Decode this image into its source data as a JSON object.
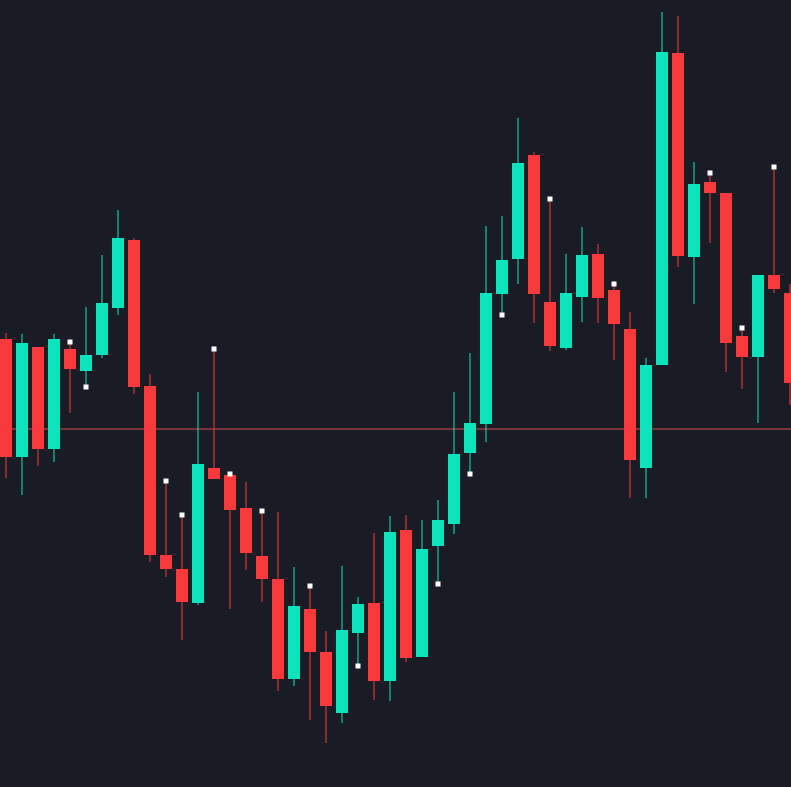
{
  "chart_data": {
    "type": "candlestick",
    "title": "",
    "xlabel": "",
    "ylabel": "",
    "ylim": [
      0,
      787
    ],
    "grid": false,
    "colors": {
      "background": "#1a1c25",
      "up": "#0fe3bc",
      "down": "#f83a3c",
      "marker": "#ffffff",
      "reference_line": "#e0454a"
    },
    "reference_line": 358,
    "candles": [
      {
        "o": 448,
        "h": 454,
        "l": 309,
        "c": 330
      },
      {
        "o": 330,
        "h": 453,
        "l": 292,
        "c": 444
      },
      {
        "o": 440,
        "h": 440,
        "l": 321,
        "c": 338
      },
      {
        "o": 338,
        "h": 453,
        "l": 325,
        "c": 448
      },
      {
        "o": 438,
        "h": 445,
        "l": 374,
        "c": 418,
        "marker": "high"
      },
      {
        "o": 416,
        "h": 480,
        "l": 400,
        "c": 432,
        "marker": "low"
      },
      {
        "o": 432,
        "h": 532,
        "l": 429,
        "c": 484
      },
      {
        "o": 479,
        "h": 577,
        "l": 472,
        "c": 549
      },
      {
        "o": 547,
        "h": 549,
        "l": 393,
        "c": 400
      },
      {
        "o": 401,
        "h": 413,
        "l": 225,
        "c": 232
      },
      {
        "o": 232,
        "h": 306,
        "l": 210,
        "c": 218,
        "marker": "high"
      },
      {
        "o": 218,
        "h": 272,
        "l": 147,
        "c": 185,
        "marker": "high"
      },
      {
        "o": 184,
        "h": 395,
        "l": 182,
        "c": 323
      },
      {
        "o": 319,
        "h": 438,
        "l": 308,
        "c": 308,
        "marker": "high"
      },
      {
        "o": 312,
        "h": 313,
        "l": 178,
        "c": 277,
        "marker": "high"
      },
      {
        "o": 279,
        "h": 305,
        "l": 217,
        "c": 234
      },
      {
        "o": 231,
        "h": 276,
        "l": 185,
        "c": 208,
        "marker": "high"
      },
      {
        "o": 208,
        "h": 275,
        "l": 96,
        "c": 108
      },
      {
        "o": 108,
        "h": 220,
        "l": 101,
        "c": 181
      },
      {
        "o": 178,
        "h": 201,
        "l": 67,
        "c": 135,
        "marker": "high"
      },
      {
        "o": 135,
        "h": 156,
        "l": 44,
        "c": 81
      },
      {
        "o": 74,
        "h": 221,
        "l": 64,
        "c": 157
      },
      {
        "o": 154,
        "h": 190,
        "l": 121,
        "c": 183,
        "marker": "low"
      },
      {
        "o": 184,
        "h": 254,
        "l": 87,
        "c": 106
      },
      {
        "o": 106,
        "h": 271,
        "l": 86,
        "c": 255
      },
      {
        "o": 257,
        "h": 272,
        "l": 125,
        "c": 129
      },
      {
        "o": 130,
        "h": 267,
        "l": 130,
        "c": 238
      },
      {
        "o": 241,
        "h": 287,
        "l": 203,
        "c": 267,
        "marker": "low"
      },
      {
        "o": 263,
        "h": 395,
        "l": 253,
        "c": 333
      },
      {
        "o": 334,
        "h": 434,
        "l": 313,
        "c": 364,
        "marker": "low"
      },
      {
        "o": 363,
        "h": 561,
        "l": 345,
        "c": 494
      },
      {
        "o": 493,
        "h": 571,
        "l": 472,
        "c": 527,
        "marker": "low"
      },
      {
        "o": 528,
        "h": 669,
        "l": 503,
        "c": 624
      },
      {
        "o": 632,
        "h": 635,
        "l": 464,
        "c": 493
      },
      {
        "o": 485,
        "h": 588,
        "l": 436,
        "c": 441,
        "marker": "high"
      },
      {
        "o": 439,
        "h": 533,
        "l": 437,
        "c": 494
      },
      {
        "o": 490,
        "h": 560,
        "l": 465,
        "c": 532
      },
      {
        "o": 533,
        "h": 543,
        "l": 464,
        "c": 489
      },
      {
        "o": 497,
        "h": 503,
        "l": 427,
        "c": 463,
        "marker": "high"
      },
      {
        "o": 458,
        "h": 475,
        "l": 289,
        "c": 327
      },
      {
        "o": 319,
        "h": 429,
        "l": 289,
        "c": 422
      },
      {
        "o": 422,
        "h": 775,
        "l": 422,
        "c": 735
      },
      {
        "o": 734,
        "h": 771,
        "l": 520,
        "c": 531
      },
      {
        "o": 530,
        "h": 625,
        "l": 483,
        "c": 603
      },
      {
        "o": 605,
        "h": 614,
        "l": 544,
        "c": 594,
        "marker": "high"
      },
      {
        "o": 594,
        "h": 594,
        "l": 415,
        "c": 444
      },
      {
        "o": 451,
        "h": 459,
        "l": 398,
        "c": 430,
        "marker": "high"
      },
      {
        "o": 430,
        "h": 512,
        "l": 364,
        "c": 512
      },
      {
        "o": 512,
        "h": 620,
        "l": 494,
        "c": 498,
        "marker": "high"
      },
      {
        "o": 494,
        "h": 503,
        "l": 382,
        "c": 404
      }
    ]
  }
}
